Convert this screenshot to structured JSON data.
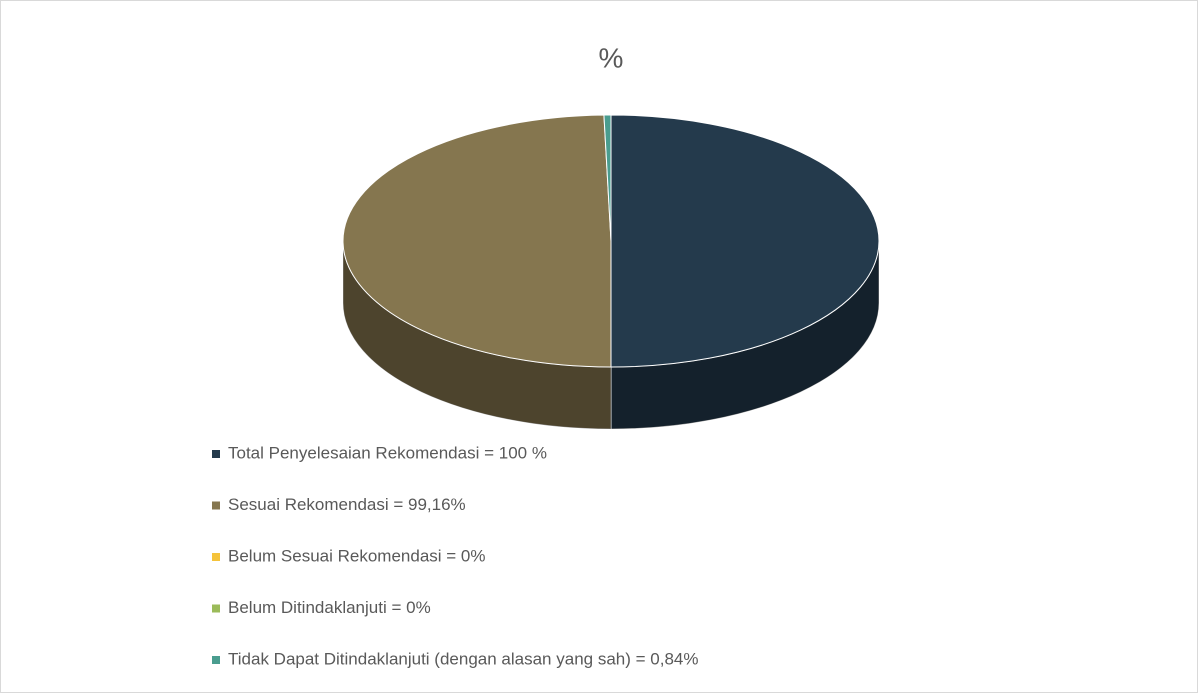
{
  "chart_data": {
    "type": "pie3d",
    "title": "%",
    "categories": [
      "Total Penyelesaian Rekomendasi = 100 %",
      "Sesuai Rekomendasi = 99,16%",
      "Belum Sesuai Rekomendasi = 0%",
      "Belum Ditindaklanjuti = 0%",
      "Tidak Dapat Ditindaklanjuti (dengan alasan yang sah) = 0,84%"
    ],
    "values": [
      100,
      99.16,
      0,
      0,
      0.84
    ],
    "colors": [
      "#243a4c",
      "#85764f",
      "#f5c33b",
      "#9bbb59",
      "#4a9d8f"
    ],
    "legend": "bottom"
  }
}
